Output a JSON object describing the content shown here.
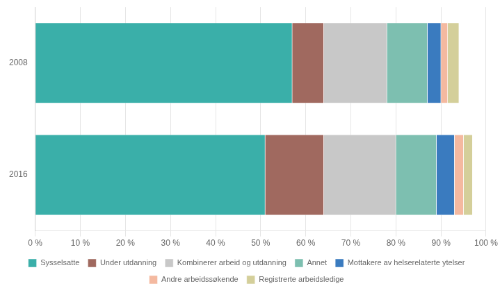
{
  "chart_data": {
    "type": "bar",
    "orientation": "horizontal",
    "stacked": true,
    "categories": [
      "2008",
      "2016"
    ],
    "series": [
      {
        "name": "Sysselsatte",
        "color": "#3AAFA9",
        "values": [
          57,
          51
        ]
      },
      {
        "name": "Under utdanning",
        "color": "#A0695F",
        "values": [
          7,
          13
        ]
      },
      {
        "name": "Kombinerer arbeid og utdanning",
        "color": "#C8C8C8",
        "values": [
          14,
          16
        ]
      },
      {
        "name": "Annet",
        "color": "#7DBFB0",
        "values": [
          9,
          9
        ]
      },
      {
        "name": "Mottakere av helserelaterte ytelser",
        "color": "#3A7BBF",
        "values": [
          3,
          4
        ]
      },
      {
        "name": "Andre arbeidssøkende",
        "color": "#F4B9A0",
        "values": [
          1.5,
          2
        ]
      },
      {
        "name": "Registrerte arbeidsledige",
        "color": "#D4CF9A",
        "values": [
          2.5,
          2
        ]
      }
    ],
    "xlim": [
      0,
      100
    ],
    "xticks": [
      {
        "value": 0,
        "label": "0 %"
      },
      {
        "value": 10,
        "label": "10 %"
      },
      {
        "value": 20,
        "label": "20 %"
      },
      {
        "value": 30,
        "label": "30 %"
      },
      {
        "value": 40,
        "label": "40 %"
      },
      {
        "value": 50,
        "label": "50 %"
      },
      {
        "value": 60,
        "label": "60 %"
      },
      {
        "value": 70,
        "label": "70 %"
      },
      {
        "value": 80,
        "label": "80 %"
      },
      {
        "value": 90,
        "label": "90 %"
      },
      {
        "value": 100,
        "label": "100 %"
      }
    ],
    "grid": true,
    "legend": "bottom"
  }
}
